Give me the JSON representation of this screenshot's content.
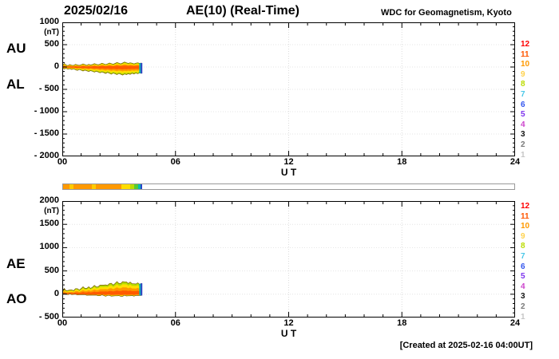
{
  "header": {
    "date": "2025/02/16",
    "title": "AE(10) (Real-Time)",
    "source": "WDC for Geomagnetism, Kyoto"
  },
  "footer": {
    "created": "[Created at 2025-02-16 04:00UT]"
  },
  "legend": {
    "labels": [
      "12",
      "11",
      "10",
      "9",
      "8",
      "7",
      "6",
      "5",
      "4",
      "3",
      "2",
      "1"
    ],
    "colors": [
      "#ff0000",
      "#ff5500",
      "#ff9900",
      "#ffd24d",
      "#bcdc00",
      "#4cc8e8",
      "#3355ee",
      "#7d33ee",
      "#cc44cc",
      "#141414",
      "#7a7a7a",
      "#c6c6c6"
    ]
  },
  "station_bar": {
    "x_range": [
      0,
      24
    ],
    "segments": [
      {
        "from": 0.0,
        "to": 0.35,
        "color": "#ff9900"
      },
      {
        "from": 0.35,
        "to": 0.55,
        "color": "#ffcc00"
      },
      {
        "from": 0.55,
        "to": 1.55,
        "color": "#ff9900"
      },
      {
        "from": 1.55,
        "to": 1.75,
        "color": "#ffcc00"
      },
      {
        "from": 1.75,
        "to": 3.1,
        "color": "#ff9900"
      },
      {
        "from": 3.1,
        "to": 3.55,
        "color": "#ffdd00"
      },
      {
        "from": 3.55,
        "to": 3.8,
        "color": "#bcdc00"
      },
      {
        "from": 3.8,
        "to": 4.0,
        "color": "#55cc33"
      },
      {
        "from": 4.0,
        "to": 4.12,
        "color": "#00b8b8"
      },
      {
        "from": 4.12,
        "to": 4.22,
        "color": "#2b43c8"
      }
    ]
  },
  "chart_data": [
    {
      "type": "area",
      "panel": "top",
      "left_labels": [
        "AU",
        "AL"
      ],
      "ylabel_unit": "(nT)",
      "xlabel": "U T",
      "xlim": [
        0,
        24
      ],
      "xticks": [
        0,
        6,
        12,
        18,
        24
      ],
      "xtick_labels": [
        "00",
        "06",
        "12",
        "18",
        "24"
      ],
      "ylim": [
        -2000,
        1000
      ],
      "yticks": [
        1000,
        500,
        0,
        -500,
        -1000,
        -1500,
        -2000
      ],
      "ytick_labels": [
        "1000",
        "500",
        "0",
        "- 500",
        "- 1000",
        "- 1500",
        "- 2000"
      ],
      "fill_layers": [
        {
          "scale": 1.0,
          "color": "#b4dc00"
        },
        {
          "scale": 0.8,
          "color": "#ffdf00"
        },
        {
          "scale": 0.55,
          "color": "#ff9900"
        },
        {
          "scale": 0.3,
          "color": "#ff5a00"
        }
      ],
      "end_bar_colors": [
        "#00b8b8",
        "#2b43c8"
      ],
      "x": [
        0,
        0.1,
        0.2,
        0.3,
        0.4,
        0.5,
        0.6,
        0.7,
        0.8,
        0.9,
        1,
        1.1,
        1.2,
        1.3,
        1.4,
        1.5,
        1.6,
        1.7,
        1.8,
        1.9,
        2,
        2.1,
        2.2,
        2.3,
        2.4,
        2.5,
        2.6,
        2.7,
        2.8,
        2.9,
        3,
        3.1,
        3.2,
        3.3,
        3.4,
        3.5,
        3.6,
        3.7,
        3.8,
        3.9,
        4,
        4.1,
        4.2
      ],
      "series": [
        {
          "name": "AU",
          "values": [
            20,
            80,
            45,
            30,
            55,
            40,
            35,
            60,
            45,
            35,
            50,
            70,
            55,
            40,
            60,
            45,
            55,
            75,
            60,
            50,
            65,
            85,
            70,
            55,
            70,
            90,
            75,
            60,
            80,
            100,
            85,
            70,
            90,
            110,
            95,
            80,
            95,
            85,
            70,
            85,
            95,
            80,
            90
          ]
        },
        {
          "name": "AL",
          "values": [
            -15,
            -45,
            -30,
            -50,
            -35,
            -55,
            -40,
            -60,
            -75,
            -55,
            -70,
            -90,
            -70,
            -85,
            -100,
            -80,
            -95,
            -115,
            -95,
            -110,
            -130,
            -110,
            -125,
            -145,
            -120,
            -140,
            -160,
            -135,
            -150,
            -170,
            -145,
            -160,
            -180,
            -155,
            -170,
            -150,
            -165,
            -140,
            -155,
            -135,
            -150,
            -130,
            -145
          ]
        }
      ]
    },
    {
      "type": "area",
      "panel": "bottom",
      "left_labels": [
        "AE",
        "AO"
      ],
      "ylabel_unit": "(nT)",
      "xlabel": "U T",
      "xlim": [
        0,
        24
      ],
      "xticks": [
        0,
        6,
        12,
        18,
        24
      ],
      "xtick_labels": [
        "00",
        "06",
        "12",
        "18",
        "24"
      ],
      "ylim": [
        -500,
        2000
      ],
      "yticks": [
        2000,
        1500,
        1000,
        500,
        0,
        -500
      ],
      "ytick_labels": [
        "2000",
        "1500",
        "1000",
        "500",
        "0",
        "- 500"
      ],
      "fill_layers": [
        {
          "scale": 1.0,
          "color": "#b4dc00"
        },
        {
          "scale": 0.8,
          "color": "#ffdf00"
        },
        {
          "scale": 0.55,
          "color": "#ff9900"
        },
        {
          "scale": 0.3,
          "color": "#ff5a00"
        }
      ],
      "end_bar_colors": [
        "#00b8b8",
        "#2b43c8"
      ],
      "x": [
        0,
        0.1,
        0.2,
        0.3,
        0.4,
        0.5,
        0.6,
        0.7,
        0.8,
        0.9,
        1,
        1.1,
        1.2,
        1.3,
        1.4,
        1.5,
        1.6,
        1.7,
        1.8,
        1.9,
        2,
        2.1,
        2.2,
        2.3,
        2.4,
        2.5,
        2.6,
        2.7,
        2.8,
        2.9,
        3,
        3.1,
        3.2,
        3.3,
        3.4,
        3.5,
        3.6,
        3.7,
        3.8,
        3.9,
        4,
        4.1,
        4.2
      ],
      "series": [
        {
          "name": "AE",
          "values": [
            35,
            125,
            75,
            80,
            90,
            95,
            75,
            120,
            120,
            90,
            120,
            160,
            125,
            125,
            160,
            125,
            150,
            190,
            155,
            160,
            195,
            195,
            195,
            200,
            190,
            230,
            235,
            195,
            230,
            270,
            230,
            230,
            270,
            265,
            265,
            230,
            260,
            225,
            225,
            220,
            245,
            210,
            235
          ]
        },
        {
          "name": "AO",
          "values": [
            3,
            18,
            8,
            -10,
            10,
            -8,
            -3,
            0,
            -15,
            -10,
            -10,
            -10,
            -8,
            -23,
            -20,
            -18,
            -20,
            -20,
            -18,
            -30,
            -33,
            -13,
            -28,
            -45,
            -25,
            -25,
            -43,
            -38,
            -35,
            -35,
            -30,
            -45,
            -45,
            -23,
            -38,
            -35,
            -35,
            -28,
            -43,
            -25,
            -28,
            -25,
            -28
          ]
        }
      ]
    }
  ]
}
